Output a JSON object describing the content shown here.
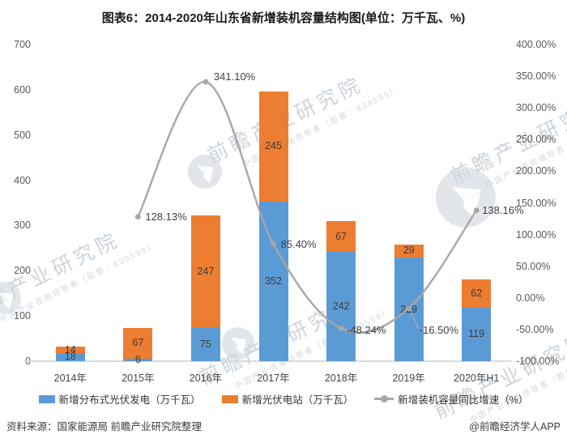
{
  "title": "图表6：2014-2020年山东省新增装机容量结构图(单位：万千瓦、%)",
  "chart_data": {
    "type": "bar",
    "stacked": true,
    "grid": false,
    "legend_position": "bottom",
    "categories": [
      "2014年",
      "2015年",
      "2016年",
      "2017年",
      "2018年",
      "2019年",
      "2020年H1"
    ],
    "series": [
      {
        "name": "新增分布式光伏发电（万千瓦）",
        "color": "#5B9BD5",
        "values": [
          18,
          6,
          75,
          352,
          242,
          229,
          119
        ]
      },
      {
        "name": "新增光伏电站（万千瓦）",
        "color": "#ED7D31",
        "values": [
          14,
          67,
          247,
          245,
          67,
          29,
          62
        ]
      }
    ],
    "line_series": {
      "name": "新增装机容量同比增速（%）",
      "color": "#A7A7A7",
      "values": [
        null,
        128.13,
        341.1,
        85.4,
        -48.24,
        -16.5,
        138.16
      ],
      "point_labels": [
        "",
        "128.13%",
        "341.10%",
        "85.40%",
        "-48.24%",
        "-16.50%",
        "138.16%"
      ]
    },
    "left_axis": {
      "min": 0,
      "max": 700,
      "step": 100,
      "ticks": [
        "700",
        "600",
        "500",
        "400",
        "300",
        "200",
        "100",
        "0"
      ]
    },
    "right_axis": {
      "min": -100,
      "max": 400,
      "step": 50,
      "ticks": [
        "400.00%",
        "350.00%",
        "300.00%",
        "250.00%",
        "200.00%",
        "150.00%",
        "100.00%",
        "50.00%",
        "0.00%",
        "-50.00%",
        "-100.00%"
      ]
    }
  },
  "watermark": {
    "big": "前瞻产业研究院",
    "small": "中国产业咨询领导者（股票：839599）"
  },
  "footer": {
    "source": "资料来源：国家能源局 前瞻产业研究院整理",
    "credit": "@前瞻经济学人APP"
  }
}
